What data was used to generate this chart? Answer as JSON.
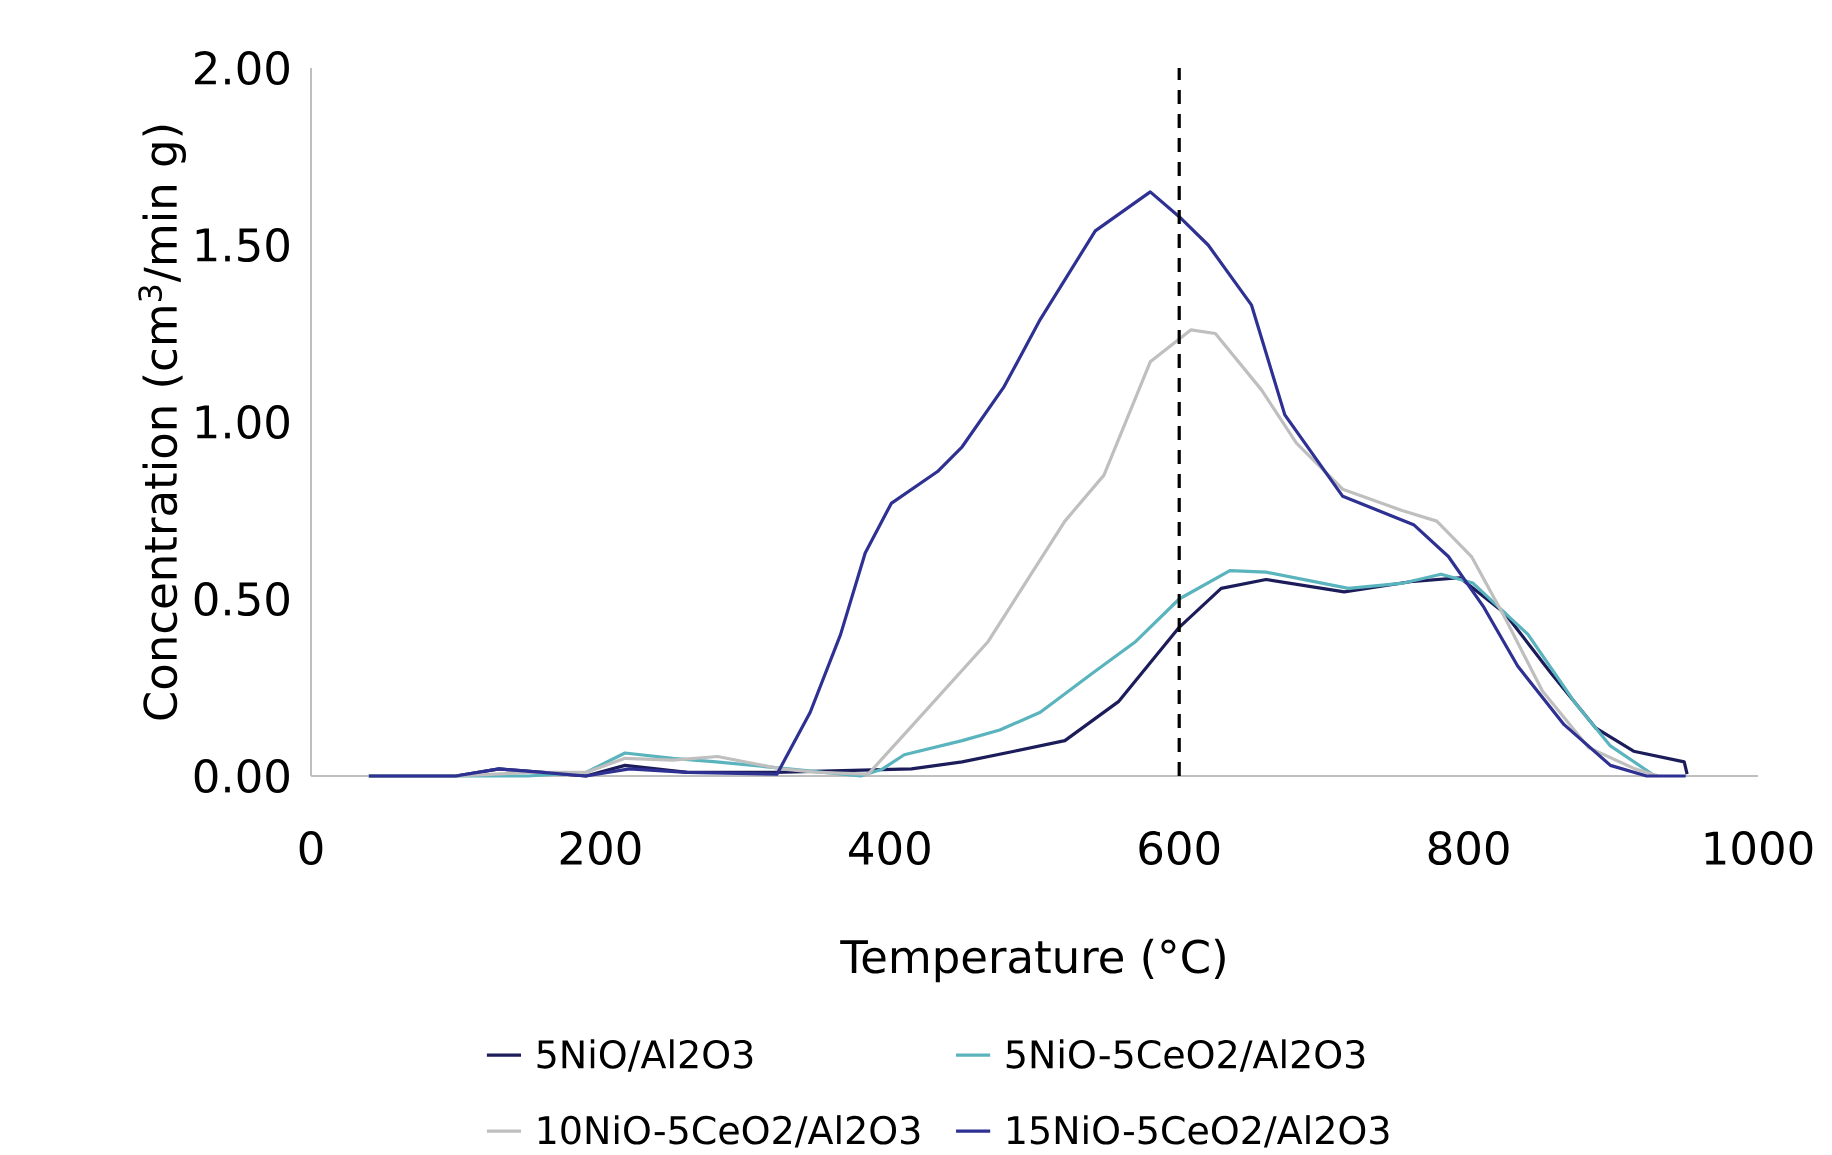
{
  "chart_data": {
    "type": "line",
    "xlabel": "Temperature (°C)",
    "ylabel": "Concentration (cm$^{3}$/min g)",
    "xlim": [
      0,
      1000
    ],
    "ylim": [
      0,
      2
    ],
    "xticks": [
      0,
      200,
      400,
      600,
      800,
      1000
    ],
    "yticks": [
      {
        "value": 0,
        "label": "0.00"
      },
      {
        "value": 0.5,
        "label": "0.50"
      },
      {
        "value": 1,
        "label": "1.00"
      },
      {
        "value": 1.5,
        "label": "1.50"
      },
      {
        "value": 2,
        "label": "2.00"
      }
    ],
    "legend": "bottom",
    "grid": false,
    "ref_lines": [
      {
        "axis": "x",
        "value": 600,
        "color": "#000000",
        "line_style": "dashed"
      }
    ],
    "series": [
      {
        "name": "5NiO/Al2O3",
        "color": "#1c1c5a",
        "x": [
          40,
          100,
          130,
          160,
          190,
          217,
          260,
          320,
          415,
          450,
          486,
          521,
          558,
          600,
          629,
          660,
          714,
          762,
          794,
          825,
          857,
          888,
          914,
          949,
          951
        ],
        "values": [
          0,
          0,
          0.02,
          0.01,
          0,
          0.03,
          0.01,
          0.01,
          0.02,
          0.04,
          0.07,
          0.1,
          0.21,
          0.42,
          0.53,
          0.555,
          0.52,
          0.55,
          0.56,
          0.46,
          0.29,
          0.135,
          0.07,
          0.04,
          0.005
        ]
      },
      {
        "name": "5NiO-5CeO2/Al2O3",
        "color": "#5ab4bd",
        "x": [
          40,
          100,
          150,
          190,
          217,
          250,
          280,
          330,
          380,
          395,
          410,
          450,
          476,
          504,
          540,
          570,
          600,
          635,
          660,
          717,
          755,
          781,
          803,
          841,
          873,
          898,
          927
        ],
        "values": [
          0,
          0,
          0,
          0.01,
          0.065,
          0.05,
          0.04,
          0.02,
          0,
          0.02,
          0.06,
          0.1,
          0.13,
          0.18,
          0.29,
          0.38,
          0.5,
          0.58,
          0.576,
          0.53,
          0.545,
          0.57,
          0.545,
          0.4,
          0.21,
          0.085,
          0.005
        ]
      },
      {
        "name": "10NiO-5CeO2/Al2O3",
        "color": "#bfbfbf",
        "x": [
          40,
          100,
          150,
          190,
          217,
          250,
          281,
          325,
          350,
          385,
          415,
          468,
          521,
          548,
          580,
          608,
          625,
          657,
          681,
          713,
          754,
          778,
          802,
          826,
          851,
          883,
          915,
          931
        ],
        "values": [
          0,
          0,
          0.01,
          0.01,
          0.05,
          0.045,
          0.055,
          0.02,
          0.01,
          0.005,
          0.14,
          0.38,
          0.72,
          0.85,
          1.17,
          1.26,
          1.25,
          1.09,
          0.94,
          0.81,
          0.75,
          0.72,
          0.62,
          0.44,
          0.24,
          0.08,
          0.02,
          0
        ]
      },
      {
        "name": "15NiO-5CeO2/Al2O3",
        "color": "#2e3192",
        "x": [
          40,
          100,
          130,
          160,
          190,
          220,
          260,
          322,
          345,
          366,
          383,
          401,
          433,
          450,
          479,
          504,
          542,
          580,
          600,
          620,
          650,
          673,
          713,
          762,
          786,
          810,
          834,
          866,
          898,
          923,
          950
        ],
        "values": [
          0,
          0,
          0.02,
          0.01,
          0,
          0.02,
          0.01,
          0.005,
          0.18,
          0.4,
          0.63,
          0.77,
          0.86,
          0.93,
          1.1,
          1.29,
          1.54,
          1.65,
          1.58,
          1.5,
          1.33,
          1.02,
          0.79,
          0.71,
          0.62,
          0.48,
          0.31,
          0.145,
          0.03,
          0,
          0
        ]
      }
    ]
  }
}
